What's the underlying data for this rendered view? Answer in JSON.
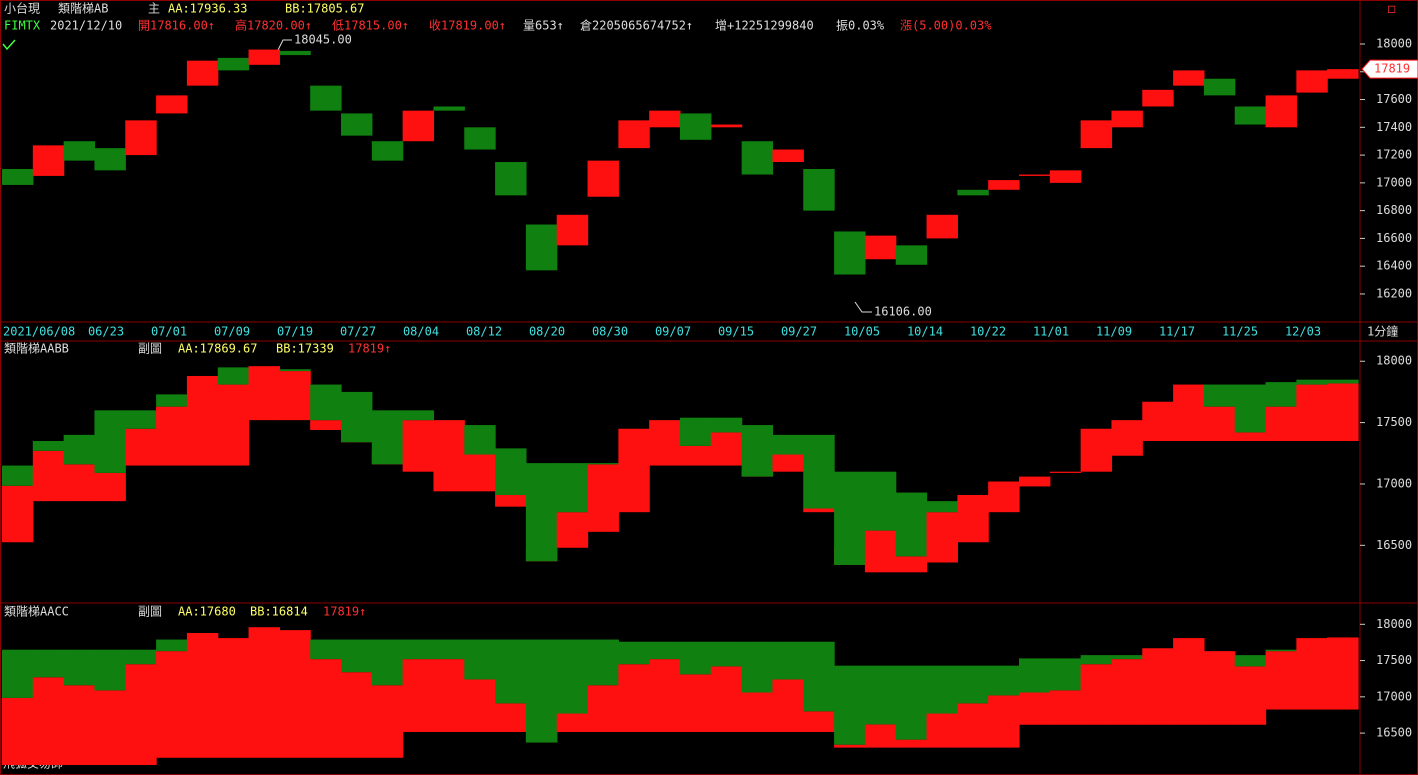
{
  "header": {
    "symbol": "小台現",
    "study": "類階梯AB",
    "main": "主",
    "aa": "AA:17936.33",
    "bb": "BB:17805.67",
    "code": "FIMTX",
    "date": "2021/12/10",
    "open": "開17816.00↑",
    "high": "高17820.00↑",
    "low": "低17815.00↑",
    "close": "收17819.00↑",
    "volume": "量653↑",
    "oi": "倉2205065674752↑",
    "change_oi": "增+12251299840",
    "amplitude": "振0.03%",
    "change": "漲(5.00)0.03%"
  },
  "annotations": {
    "high": "18045.00",
    "low": "16106.00",
    "last": "17819",
    "period": "1分鐘",
    "footer": "飛狐交易師"
  },
  "dates": [
    "2021/06/08",
    "06/23",
    "07/01",
    "07/09",
    "07/19",
    "07/27",
    "08/04",
    "08/12",
    "08/20",
    "08/30",
    "09/07",
    "09/15",
    "09/27",
    "10/05",
    "10/14",
    "10/22",
    "11/01",
    "11/09",
    "11/17",
    "11/25",
    "12/03"
  ],
  "close": [
    16985,
    17270,
    17160,
    17090,
    17450,
    17630,
    17880,
    17810,
    17960,
    17920,
    17520,
    17340,
    17160,
    17520,
    17520,
    17240,
    16910,
    16370,
    16770,
    17160,
    17450,
    17520,
    17310,
    17420,
    17060,
    17240,
    16800,
    16340,
    16620,
    16410,
    16770,
    16910,
    17020,
    17060,
    17090,
    17450,
    17520,
    17670,
    17810,
    17630,
    17420,
    17630,
    17810,
    17819
  ],
  "panels": [
    {
      "ylim": [
        15998,
        18072
      ],
      "yticks": [
        16200,
        16400,
        16600,
        16800,
        17000,
        17200,
        17400,
        17600,
        17800,
        18000
      ],
      "step": [
        17100,
        17050,
        17300,
        17250,
        17200,
        17500,
        17700,
        17900,
        17850,
        17950,
        17700,
        17500,
        17300,
        17300,
        17550,
        17400,
        17150,
        16700,
        16550,
        16900,
        17250,
        17400,
        17500,
        17400,
        17300,
        17150,
        17100,
        16650,
        16450,
        16550,
        16600,
        16950,
        16950,
        17050,
        17000,
        17250,
        17400,
        17550,
        17700,
        17750,
        17550,
        17400,
        17650,
        17750
      ]
    },
    {
      "title": "類階梯AABB",
      "sub": "副圖",
      "aa_text": "AA:17869.67",
      "bb_text": "BB:17339",
      "last": "17819↑",
      "ylim": [
        16030,
        18165
      ],
      "yticks": [
        16500,
        17000,
        17500,
        18000
      ],
      "aa": [
        17150,
        17350,
        17400,
        17600,
        17600,
        17730,
        17850,
        17950,
        17950,
        17935,
        17810,
        17750,
        17600,
        17600,
        17480,
        17480,
        17290,
        17170,
        17170,
        17170,
        17440,
        17440,
        17540,
        17540,
        17480,
        17400,
        17400,
        17100,
        17100,
        16930,
        16860,
        16730,
        16770,
        17020,
        17020,
        17230,
        17230,
        17480,
        17810,
        17810,
        17810,
        17830,
        17850,
        17850
      ],
      "bb": [
        16525,
        16860,
        16860,
        16860,
        17150,
        17150,
        17150,
        17150,
        17520,
        17520,
        17440,
        17440,
        17270,
        17100,
        16940,
        16940,
        16815,
        16480,
        16480,
        16610,
        16770,
        17150,
        17150,
        17150,
        17100,
        17100,
        16770,
        16480,
        16280,
        16280,
        16360,
        16525,
        16770,
        16980,
        17100,
        17100,
        17230,
        17350,
        17350,
        17350,
        17350,
        17350,
        17350,
        17350
      ]
    },
    {
      "title": "類階梯AACC",
      "sub": "副圖",
      "aa_text": "AA:17680",
      "bb_text": "BB:16814",
      "last": "17819↑",
      "ylim": [
        15950,
        18280
      ],
      "yticks": [
        16500,
        17000,
        17500,
        18000
      ],
      "aa": [
        17650,
        17650,
        17650,
        17650,
        17650,
        17790,
        17790,
        17790,
        17790,
        17790,
        17790,
        17790,
        17790,
        17790,
        17790,
        17790,
        17790,
        17790,
        17790,
        17790,
        17760,
        17760,
        17760,
        17760,
        17760,
        17760,
        17760,
        17430,
        17430,
        17430,
        17430,
        17430,
        17430,
        17530,
        17530,
        17575,
        17575,
        17575,
        17575,
        17575,
        17575,
        17650,
        17650,
        17650
      ],
      "bb": [
        16060,
        16060,
        16060,
        16060,
        16060,
        16160,
        16160,
        16160,
        16160,
        16160,
        16160,
        16160,
        16160,
        16515,
        16515,
        16515,
        16515,
        16515,
        16515,
        16515,
        16515,
        16515,
        16515,
        16515,
        16515,
        16515,
        16515,
        16300,
        16300,
        16300,
        16300,
        16300,
        16300,
        16615,
        16615,
        16615,
        16615,
        16615,
        16615,
        16615,
        16615,
        16825,
        16825,
        16825
      ]
    }
  ]
}
